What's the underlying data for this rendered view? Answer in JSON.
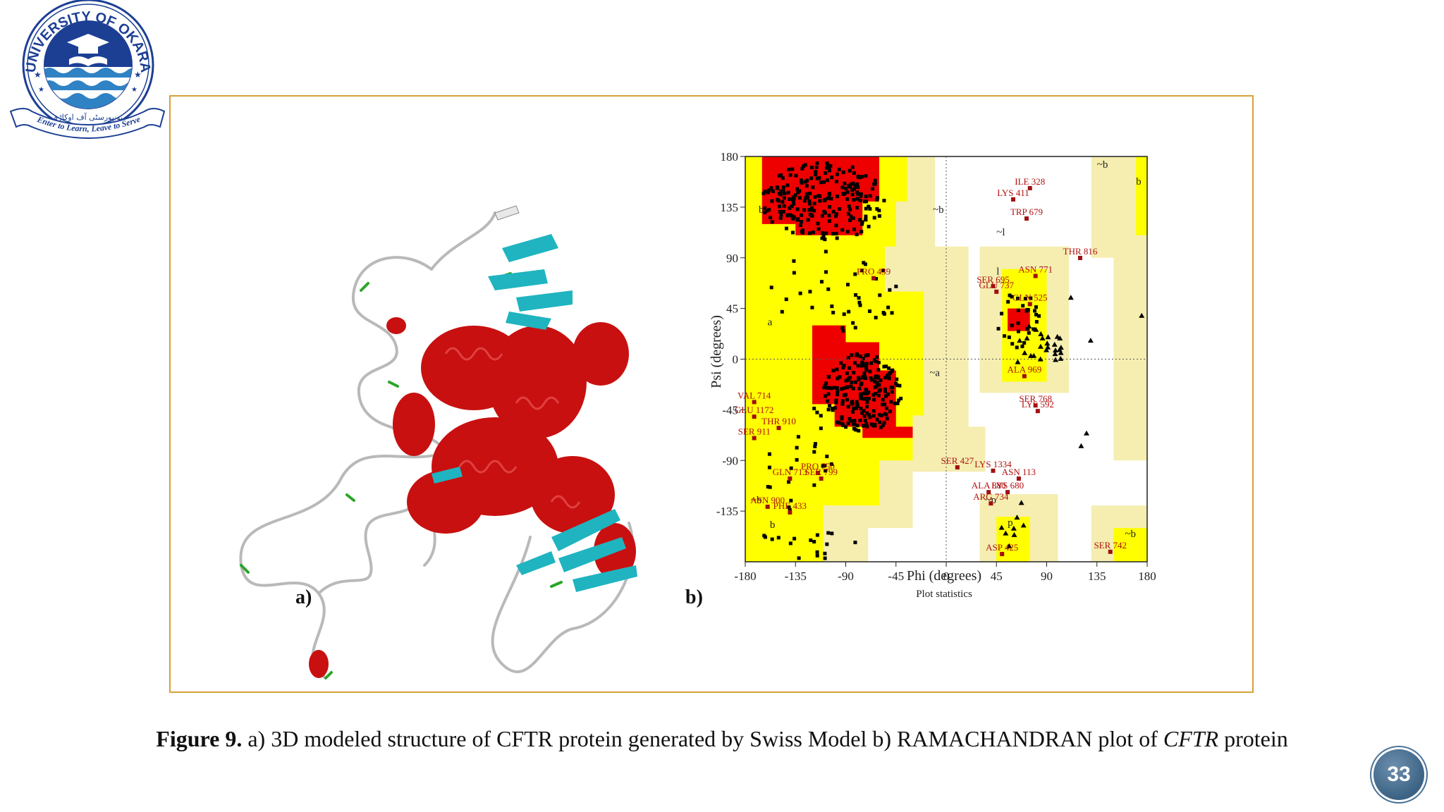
{
  "logo": {
    "name": "UNIVERSITY OF OKARA",
    "motto": "Enter to Learn, Leave to Serve",
    "urdu": "یونیورسٹی آف اوکاڑہ",
    "colors": {
      "primary": "#1c3f94",
      "water": "#2f82c4"
    }
  },
  "figure": {
    "label_a": "a)",
    "label_b": "b)"
  },
  "caption": {
    "prefix": "Figure 9.",
    "text_part1": " a) 3D modeled structure of CFTR protein generated by Swiss Model b) RAMACHANDRAN plot of ",
    "italic": "CFTR",
    "text_part2": " protein"
  },
  "page_number": "33",
  "chart_data": {
    "type": "scatter",
    "title": "",
    "xlabel": "Phi (degrees)",
    "ylabel": "Psi (degrees)",
    "footer": "Plot statistics",
    "xlim": [
      -180,
      180
    ],
    "ylim": [
      -180,
      180
    ],
    "xticks": [
      "-180",
      "-135",
      "-90",
      "-45",
      "0",
      "45",
      "90",
      "135",
      "180"
    ],
    "yticks": [
      "180",
      "135",
      "90",
      "45",
      "0",
      "-45",
      "-90",
      "-135"
    ],
    "region_labels": [
      {
        "text": "b",
        "phi": -168,
        "psi": 130
      },
      {
        "text": "~b",
        "phi": -12,
        "psi": 130
      },
      {
        "text": "a",
        "phi": -160,
        "psi": 30
      },
      {
        "text": "~a",
        "phi": -15,
        "psi": -15
      },
      {
        "text": "~b",
        "phi": -175,
        "psi": -128
      },
      {
        "text": "b",
        "phi": -158,
        "psi": -150
      },
      {
        "text": "~l",
        "phi": 45,
        "psi": 110
      },
      {
        "text": "l",
        "phi": 45,
        "psi": 75
      },
      {
        "text": "~p",
        "phi": 35,
        "psi": -128
      },
      {
        "text": "p",
        "phi": 55,
        "psi": -148
      },
      {
        "text": "~b",
        "phi": 135,
        "psi": 170
      },
      {
        "text": "b",
        "phi": 170,
        "psi": 155
      },
      {
        "text": "~b",
        "phi": 160,
        "psi": -158
      }
    ],
    "outlier_labels": [
      {
        "text": "ILE 328",
        "phi": 75,
        "psi": 155
      },
      {
        "text": "LYS 411",
        "phi": 60,
        "psi": 145
      },
      {
        "text": "TRP 679",
        "phi": 72,
        "psi": 128
      },
      {
        "text": "THR 816",
        "phi": 120,
        "psi": 93
      },
      {
        "text": "PRO 439",
        "phi": -65,
        "psi": 75
      },
      {
        "text": "ASN 771",
        "phi": 80,
        "psi": 77
      },
      {
        "text": "SER 695",
        "phi": 42,
        "psi": 68
      },
      {
        "text": "GLU 737",
        "phi": 45,
        "psi": 63
      },
      {
        "text": "GLN 525",
        "phi": 75,
        "psi": 52
      },
      {
        "text": "ALA 969",
        "phi": 70,
        "psi": -12
      },
      {
        "text": "VAL 714",
        "phi": -172,
        "psi": -35
      },
      {
        "text": "SER 768",
        "phi": 80,
        "psi": -38
      },
      {
        "text": "GLU 1172",
        "phi": -172,
        "psi": -48
      },
      {
        "text": "LYS 592",
        "phi": 82,
        "psi": -43
      },
      {
        "text": "THR 910",
        "phi": -150,
        "psi": -58
      },
      {
        "text": "SER 911",
        "phi": -172,
        "psi": -67
      },
      {
        "text": "SER 427",
        "phi": 10,
        "psi": -93
      },
      {
        "text": "LYS 1334",
        "phi": 42,
        "psi": -96
      },
      {
        "text": "PRO 750",
        "phi": -115,
        "psi": -98
      },
      {
        "text": "ASN 113",
        "phi": 65,
        "psi": -103
      },
      {
        "text": "GLN 713",
        "phi": -140,
        "psi": -103
      },
      {
        "text": "SER 799",
        "phi": -112,
        "psi": -103
      },
      {
        "text": "ALA 880",
        "phi": 38,
        "psi": -115
      },
      {
        "text": "LYS 680",
        "phi": 55,
        "psi": -115
      },
      {
        "text": "ARG 734",
        "phi": 40,
        "psi": -125
      },
      {
        "text": "ASN 900",
        "phi": -160,
        "psi": -128
      },
      {
        "text": "PHE 433",
        "phi": -140,
        "psi": -133
      },
      {
        "text": "ASP 425",
        "phi": 50,
        "psi": -170
      },
      {
        "text": "SER 742",
        "phi": 147,
        "psi": -168
      }
    ]
  }
}
